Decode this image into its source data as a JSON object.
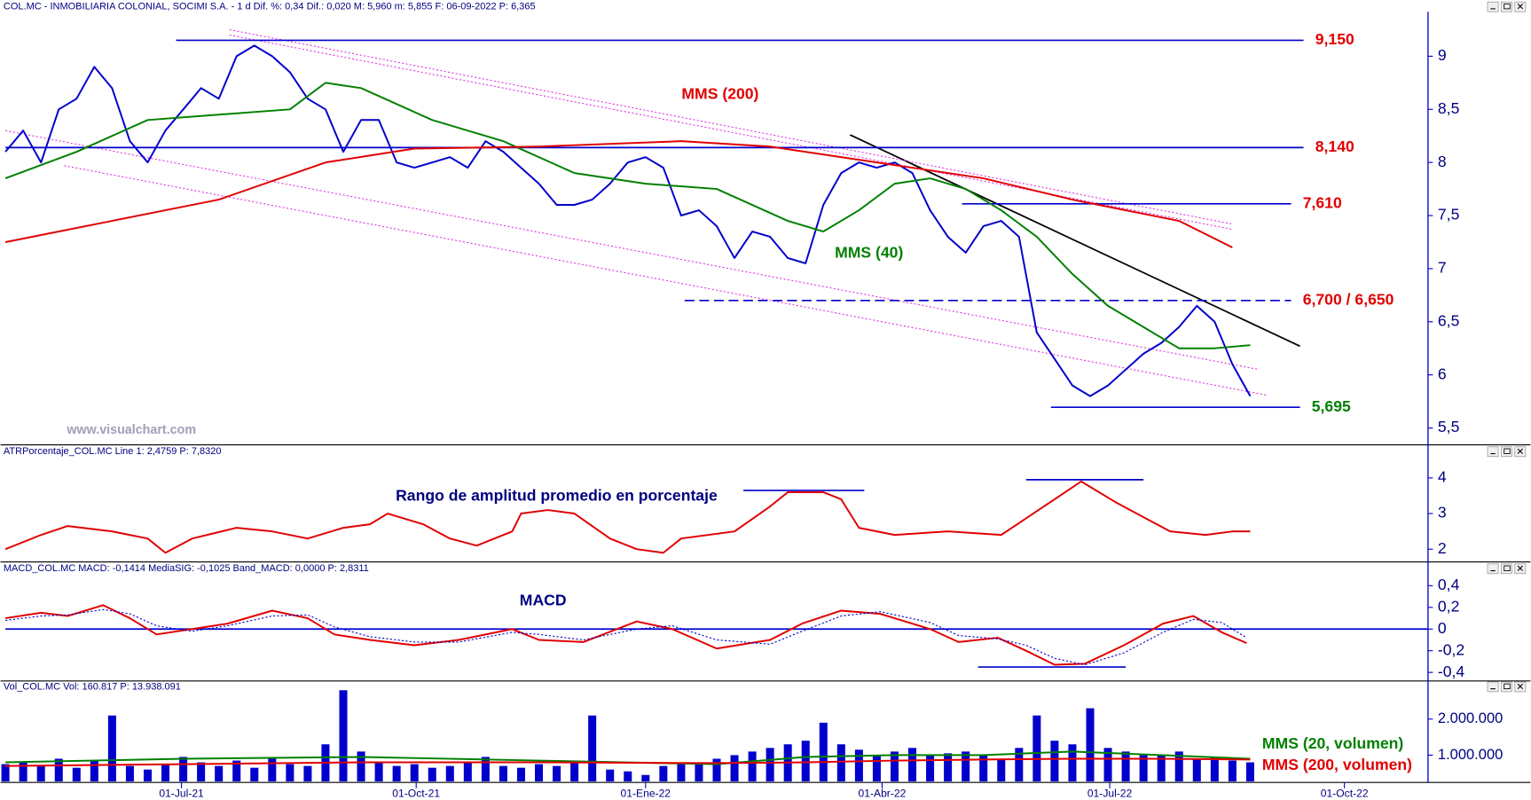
{
  "chart_data": [
    {
      "type": "line",
      "header": "COL.MC - INMOBILIARIA COLONIAL, SOCIMI S.A. - 1 d  Dif. %: 0,34  Dif.: 0,020  M: 5,960  m: 5,855  F: 06-09-2022  P: 6,365",
      "xlim": [
        0,
        80
      ],
      "ylim": [
        5.35,
        9.41
      ],
      "yticks": [
        {
          "value": 5.5,
          "label": "5,5"
        },
        6,
        {
          "value": 6.5,
          "label": "6,5"
        },
        7,
        {
          "value": 7.5,
          "label": "7,5"
        },
        8,
        {
          "value": 8.5,
          "label": "8,5"
        },
        9
      ],
      "series": [
        {
          "color": "#0000cc",
          "x": [
            0,
            1,
            2,
            3,
            4,
            5,
            6,
            7,
            8,
            9,
            10,
            11,
            12,
            13,
            14,
            15,
            16,
            17,
            18,
            19,
            20,
            21,
            22,
            23,
            24,
            25,
            26,
            27,
            28,
            29,
            30,
            31,
            32,
            33,
            34,
            35,
            36,
            37,
            38,
            39,
            40,
            41,
            42,
            43,
            44,
            45,
            46,
            47,
            48,
            49,
            50,
            51,
            52,
            53,
            54,
            55,
            56,
            57,
            58,
            59,
            60,
            61,
            62,
            63,
            64,
            65,
            66,
            67,
            68,
            69,
            70
          ],
          "values": [
            8.1,
            8.3,
            8.0,
            8.5,
            8.6,
            8.9,
            8.7,
            8.2,
            8.0,
            8.3,
            8.5,
            8.7,
            8.6,
            9.0,
            9.1,
            9.0,
            8.85,
            8.6,
            8.5,
            8.1,
            8.4,
            8.4,
            8.0,
            7.95,
            8.0,
            8.05,
            7.95,
            8.2,
            8.1,
            7.95,
            7.8,
            7.6,
            7.6,
            7.65,
            7.8,
            8.0,
            8.05,
            7.95,
            7.5,
            7.55,
            7.4,
            7.1,
            7.35,
            7.3,
            7.1,
            7.05,
            7.6,
            7.9,
            8.0,
            7.95,
            8.0,
            7.9,
            7.55,
            7.3,
            7.15,
            7.4,
            7.45,
            7.3,
            6.4,
            6.15,
            5.9,
            5.8,
            5.9,
            6.05,
            6.2,
            6.3,
            6.45,
            6.65,
            6.5,
            6.1,
            5.8
          ]
        },
        {
          "name": "MMS (40)",
          "color": "#008000",
          "x": [
            0,
            4,
            8,
            12,
            16,
            18,
            20,
            24,
            28,
            32,
            36,
            40,
            44,
            46,
            48,
            50,
            52,
            54,
            56,
            58,
            60,
            62,
            64,
            66,
            68,
            70
          ],
          "values": [
            7.85,
            8.1,
            8.4,
            8.45,
            8.5,
            8.75,
            8.7,
            8.4,
            8.2,
            7.9,
            7.8,
            7.75,
            7.45,
            7.35,
            7.55,
            7.8,
            7.85,
            7.75,
            7.55,
            7.3,
            6.95,
            6.65,
            6.45,
            6.25,
            6.25,
            6.28
          ]
        },
        {
          "name": "MMS (200)",
          "color": "#e00000",
          "x": [
            0,
            6,
            12,
            18,
            23,
            30,
            38,
            43,
            49,
            55,
            60,
            66,
            69
          ],
          "values": [
            7.25,
            7.45,
            7.65,
            8.0,
            8.13,
            8.15,
            8.2,
            8.15,
            8.0,
            7.85,
            7.65,
            7.45,
            7.2
          ]
        }
      ],
      "levels": [
        {
          "value": 9.15,
          "label": "9,150",
          "x": [
            9.6,
            73
          ],
          "color": "#0000cc",
          "label_color": "#e00000"
        },
        {
          "value": 8.14,
          "label": "8,140",
          "x": [
            0,
            73
          ],
          "color": "#0000cc",
          "label_color": "#e00000"
        },
        {
          "value": 7.61,
          "label": "7,610",
          "x": [
            53.8,
            72.3
          ],
          "color": "#0000cc",
          "label_color": "#e00000"
        },
        {
          "value": 6.7,
          "label": "6,700 / 6,650",
          "x": [
            38.2,
            72.3
          ],
          "color": "#0000cc",
          "label_color": "#e00000",
          "dash": true
        },
        {
          "value": 5.695,
          "label": "5,695",
          "x": [
            58.8,
            72.8
          ],
          "color": "#0000cc",
          "label_color": "#008000"
        }
      ],
      "trendlines": [
        {
          "color": "#000000",
          "x": [
            47.5,
            72.8
          ],
          "values": [
            8.26,
            6.27
          ]
        },
        {
          "color": "#e040e0",
          "dash": true,
          "x": [
            12.6,
            69
          ],
          "values": [
            9.25,
            7.42
          ]
        },
        {
          "color": "#e040e0",
          "dash": true,
          "x": [
            12.6,
            69
          ],
          "values": [
            9.2,
            7.37
          ]
        },
        {
          "color": "#e040e0",
          "dash": true,
          "x": [
            3.3,
            70.9
          ],
          "values": [
            7.97,
            5.81
          ]
        },
        {
          "color": "#e040e0",
          "dash": true,
          "x": [
            0,
            70.5
          ],
          "values": [
            8.3,
            6.05
          ]
        }
      ],
      "watermark": "www.visualchart.com"
    },
    {
      "type": "line",
      "header": "ATRPorcentaje_COL.MC  Line 1: 2,4759  P: 7,8320",
      "xlim": [
        0,
        80
      ],
      "ylim": [
        1.67,
        4.9
      ],
      "yticks": [
        2,
        3,
        4
      ],
      "series": [
        {
          "color": "#e00000",
          "x": [
            0,
            2,
            3.5,
            6,
            8,
            9,
            10.5,
            13,
            15,
            17,
            19,
            20.5,
            21.5,
            23.5,
            25,
            26.5,
            28.5,
            29,
            30.5,
            32,
            34,
            35.5,
            37,
            38,
            41,
            43,
            44,
            46,
            47,
            48,
            50,
            53,
            56,
            57.5,
            59,
            60.5,
            62.5,
            64,
            65.5,
            67.5,
            69,
            70
          ],
          "values": [
            2.0,
            2.4,
            2.65,
            2.5,
            2.3,
            1.9,
            2.3,
            2.6,
            2.5,
            2.3,
            2.6,
            2.7,
            3.0,
            2.7,
            2.3,
            2.1,
            2.5,
            3.0,
            3.1,
            3.0,
            2.3,
            2.0,
            1.9,
            2.3,
            2.5,
            3.2,
            3.6,
            3.6,
            3.4,
            2.6,
            2.4,
            2.5,
            2.4,
            2.9,
            3.4,
            3.9,
            3.3,
            2.9,
            2.5,
            2.4,
            2.5,
            2.5
          ]
        }
      ],
      "levels": [
        {
          "value": 3.65,
          "x": [
            41.5,
            48.3
          ],
          "color": "#0000cc"
        },
        {
          "value": 3.95,
          "x": [
            57.4,
            64
          ],
          "color": "#0000cc"
        }
      ],
      "annotations": [
        "Rango de amplitud promedio en porcentaje"
      ]
    },
    {
      "type": "line",
      "header": "MACD_COL.MC  MACD: -0,1414  MediaSIG: -0,1025  Band_MACD: 0,0000  P: 2,8311",
      "xlim": [
        0,
        80
      ],
      "ylim": [
        -0.47,
        0.61
      ],
      "yticks": [
        {
          "value": -0.4,
          "label": "-0,4"
        },
        {
          "value": -0.2,
          "label": "-0,2"
        },
        0,
        {
          "value": 0.2,
          "label": "0,2"
        },
        {
          "value": 0.4,
          "label": "0,4"
        }
      ],
      "series": [
        {
          "color": "#e00000",
          "x": [
            0,
            2,
            3.5,
            5.5,
            7,
            8.5,
            10.5,
            12.5,
            15,
            17,
            18.5,
            20.5,
            23,
            25.5,
            28.5,
            30,
            32.5,
            35.5,
            37.5,
            40,
            43,
            44.8,
            47,
            49.2,
            52,
            53.6,
            55.8,
            57.4,
            59,
            60.7,
            62.9,
            65.1,
            66.8,
            68.4,
            69.8
          ],
          "values": [
            0.1,
            0.15,
            0.12,
            0.22,
            0.1,
            -0.05,
            0.0,
            0.05,
            0.17,
            0.1,
            -0.05,
            -0.1,
            -0.15,
            -0.1,
            0.0,
            -0.1,
            -0.12,
            0.07,
            0.0,
            -0.18,
            -0.1,
            0.05,
            0.17,
            0.14,
            0.0,
            -0.12,
            -0.08,
            -0.2,
            -0.33,
            -0.32,
            -0.15,
            0.05,
            0.12,
            -0.03,
            -0.13
          ]
        },
        {
          "color": "#0000cc",
          "dash": true,
          "x": [
            0,
            2,
            3.5,
            5.5,
            7,
            8.5,
            10.5,
            12.5,
            15,
            17,
            18.5,
            20.5,
            23,
            25.5,
            28.5,
            30,
            32.5,
            35.5,
            37.5,
            40,
            43,
            44.8,
            47,
            49.2,
            52,
            53.6,
            55.8,
            57.4,
            59,
            60.7,
            62.9,
            65.1,
            66.8,
            68.4,
            69.8
          ],
          "values": [
            0.08,
            0.12,
            0.13,
            0.18,
            0.14,
            0.03,
            -0.02,
            0.03,
            0.12,
            0.13,
            0.02,
            -0.07,
            -0.12,
            -0.12,
            -0.03,
            -0.05,
            -0.1,
            0.0,
            0.03,
            -0.1,
            -0.14,
            -0.02,
            0.12,
            0.16,
            0.06,
            -0.06,
            -0.09,
            -0.15,
            -0.27,
            -0.33,
            -0.22,
            -0.03,
            0.09,
            0.06,
            -0.08
          ]
        }
      ],
      "levels": [
        {
          "value": 0,
          "x": [
            0,
            80
          ],
          "color": "#0000cc"
        },
        {
          "value": -0.35,
          "x": [
            54.7,
            63
          ],
          "color": "#0000cc"
        }
      ],
      "annotations": [
        "MACD"
      ]
    },
    {
      "type": "bar",
      "header": "Vol_COL.MC  Vol: 160.817  P: 13.938.091",
      "xlim": [
        0,
        80
      ],
      "ylim": [
        270000,
        3030000
      ],
      "yticks": [
        {
          "value": 1000000,
          "label": "1.000.000"
        },
        {
          "value": 2000000,
          "label": "2.000.000"
        }
      ],
      "xticks": [
        {
          "value": 9.9,
          "label": "01-Jul-21"
        },
        {
          "value": 23.1,
          "label": "01-Oct-21"
        },
        {
          "value": 36,
          "label": "01-Ene-22"
        },
        {
          "value": 49.3,
          "label": "01-Abr-22"
        },
        {
          "value": 62.1,
          "label": "01-Jul-22"
        },
        {
          "value": 75.3,
          "label": "01-Oct-22"
        }
      ],
      "color": "#0000cc",
      "x": [
        0,
        1,
        2,
        3,
        4,
        5,
        6,
        7,
        8,
        9,
        10,
        11,
        12,
        13,
        14,
        15,
        16,
        17,
        18,
        19,
        20,
        21,
        22,
        23,
        24,
        25,
        26,
        27,
        28,
        29,
        30,
        31,
        32,
        33,
        34,
        35,
        36,
        37,
        38,
        39,
        40,
        41,
        42,
        43,
        44,
        45,
        46,
        47,
        48,
        49,
        50,
        51,
        52,
        53,
        54,
        55,
        56,
        57,
        58,
        59,
        60,
        61,
        62,
        63,
        64,
        65,
        66,
        67,
        68,
        69,
        70
      ],
      "values": [
        750000,
        800000,
        700000,
        900000,
        650000,
        850000,
        2100000,
        700000,
        600000,
        750000,
        950000,
        800000,
        700000,
        850000,
        650000,
        900000,
        750000,
        700000,
        1300000,
        2800000,
        1100000,
        800000,
        700000,
        750000,
        650000,
        700000,
        800000,
        950000,
        700000,
        650000,
        750000,
        700000,
        800000,
        2100000,
        600000,
        550000,
        450000,
        700000,
        750000,
        800000,
        900000,
        1000000,
        1100000,
        1200000,
        1300000,
        1400000,
        1900000,
        1300000,
        1150000,
        1000000,
        1100000,
        1200000,
        1000000,
        1050000,
        1100000,
        1000000,
        900000,
        1200000,
        2100000,
        1400000,
        1300000,
        2300000,
        1200000,
        1100000,
        1000000,
        1000000,
        1100000,
        900000,
        950000,
        850000,
        800000
      ],
      "series": [
        {
          "name": "MMS (20, volumen)",
          "color": "#008000",
          "x": [
            0,
            10,
            20,
            30,
            40,
            45,
            50,
            55,
            60,
            65,
            70
          ],
          "values": [
            800000,
            900000,
            950000,
            850000,
            750000,
            950000,
            1000000,
            1000000,
            1100000,
            1000000,
            900000
          ]
        },
        {
          "name": "MMS (200, volumen)",
          "color": "#e00000",
          "x": [
            0,
            10,
            20,
            30,
            40,
            45,
            50,
            55,
            60,
            65,
            70
          ],
          "values": [
            700000,
            750000,
            800000,
            800000,
            780000,
            800000,
            850000,
            880000,
            900000,
            900000,
            880000
          ]
        }
      ]
    }
  ]
}
